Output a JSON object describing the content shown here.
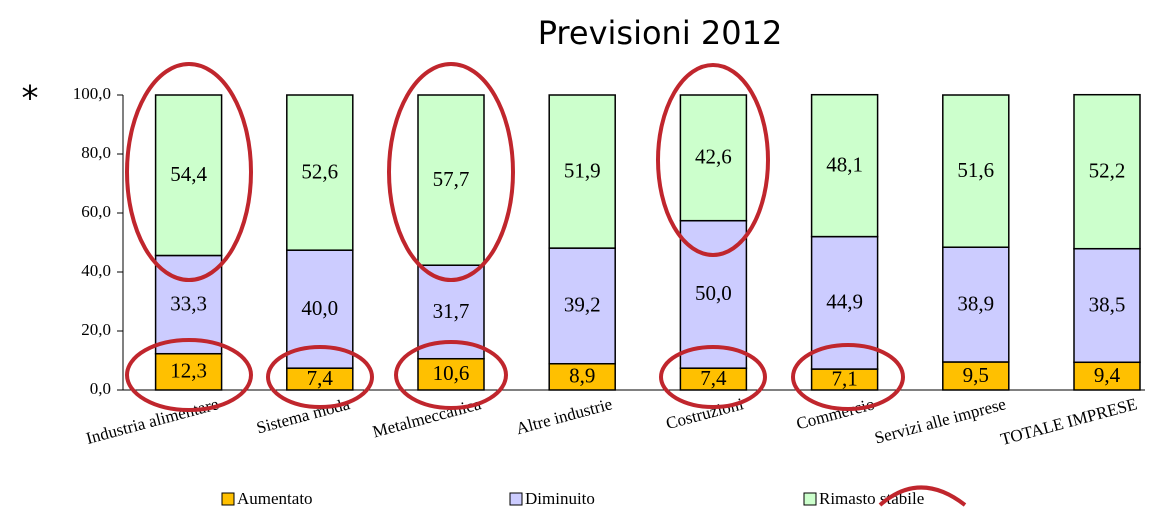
{
  "chart_data": {
    "type": "stacked_bar",
    "title": "Previsioni 2012",
    "annotation": "*",
    "categories": [
      "Industria alimentare",
      "Sistema moda",
      "Metalmeccanica",
      "Altre industrie",
      "Costruzioni",
      "Commercio",
      "Servizi alle imprese",
      "TOTALE IMPRESE"
    ],
    "series": [
      {
        "name": "Aumentato",
        "color": "#ffc000",
        "values": [
          12.3,
          7.4,
          10.6,
          8.9,
          7.4,
          7.1,
          9.5,
          9.4
        ],
        "value_labels": [
          "12,3",
          "7,4",
          "10,6",
          "8,9",
          "7,4",
          "7,1",
          "9,5",
          "9,4"
        ]
      },
      {
        "name": "Diminuito",
        "color": "#ccccff",
        "values": [
          33.3,
          40.0,
          31.7,
          39.2,
          50.0,
          44.9,
          38.9,
          38.5
        ],
        "value_labels": [
          "33,3",
          "40,0",
          "31,7",
          "39,2",
          "50,0",
          "44,9",
          "38,9",
          "38,5"
        ]
      },
      {
        "name": "Rimasto stabile",
        "color": "#ccffcc",
        "values": [
          54.4,
          52.6,
          57.7,
          51.9,
          42.6,
          48.1,
          51.6,
          52.2
        ],
        "value_labels": [
          "54,4",
          "52,6",
          "57,7",
          "51,9",
          "42,6",
          "48,1",
          "51,6",
          "52,2"
        ]
      }
    ],
    "ylim": [
      0,
      100
    ],
    "yticks": [
      {
        "value": 0,
        "label": "0,0"
      },
      {
        "value": 20,
        "label": "20,0"
      },
      {
        "value": 40,
        "label": "40,0"
      },
      {
        "value": 60,
        "label": "60,0"
      },
      {
        "value": 80,
        "label": "80,0"
      },
      {
        "value": 100,
        "label": "100,0"
      }
    ],
    "legend": "bottom"
  }
}
